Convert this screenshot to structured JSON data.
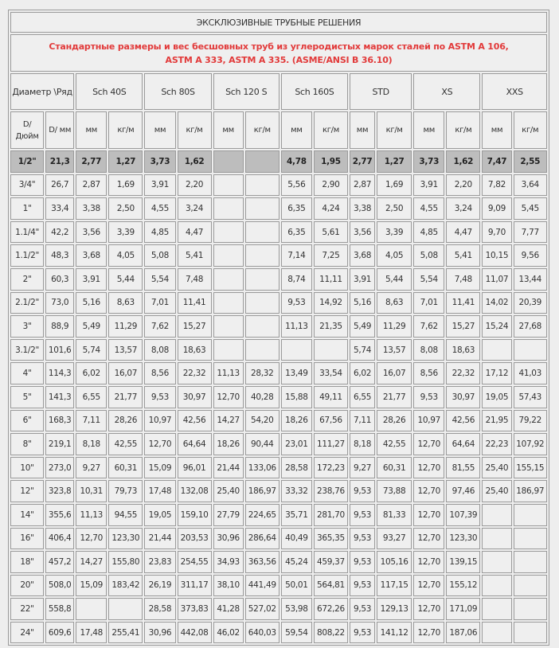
{
  "title": "ЭКСКЛЮЗИВНЫЕ ТРУБНЫЕ РЕШЕНИЯ",
  "subtitle_line1": "Стандартные размеры и вес бесшовных труб из углеродистых марок сталей по ASTM A 106,",
  "subtitle_line2": "ASTM A 333, ASTM A 335. (ASME/ANSI B 36.10)",
  "colors": {
    "subtitle": "#e23a3a",
    "highlight_row": "#bdbdbd",
    "cell": "#efefef"
  },
  "header_diameter": "Диаметр \\Ряд",
  "groups": [
    "Sch 40S",
    "Sch 80S",
    "Sch 120 S",
    "Sch 160S",
    "STD",
    "XS",
    "XXS"
  ],
  "subheaders": [
    "D/ Дюйм",
    "D/ мм",
    "мм",
    "кг/м",
    "мм",
    "кг/м",
    "мм",
    "кг/м",
    "мм",
    "кг/м",
    "мм",
    "кг/м",
    "мм",
    "кг/м",
    "мм",
    "кг/м"
  ],
  "rows": [
    [
      "1/2\"",
      "21,3",
      "2,77",
      "1,27",
      "3,73",
      "1,62",
      "",
      "",
      "4,78",
      "1,95",
      "2,77",
      "1,27",
      "3,73",
      "1,62",
      "7,47",
      "2,55"
    ],
    [
      "3/4\"",
      "26,7",
      "2,87",
      "1,69",
      "3,91",
      "2,20",
      "",
      "",
      "5,56",
      "2,90",
      "2,87",
      "1,69",
      "3,91",
      "2,20",
      "7,82",
      "3,64"
    ],
    [
      "1\"",
      "33,4",
      "3,38",
      "2,50",
      "4,55",
      "3,24",
      "",
      "",
      "6,35",
      "4,24",
      "3,38",
      "2,50",
      "4,55",
      "3,24",
      "9,09",
      "5,45"
    ],
    [
      "1.1/4\"",
      "42,2",
      "3,56",
      "3,39",
      "4,85",
      "4,47",
      "",
      "",
      "6,35",
      "5,61",
      "3,56",
      "3,39",
      "4,85",
      "4,47",
      "9,70",
      "7,77"
    ],
    [
      "1.1/2\"",
      "48,3",
      "3,68",
      "4,05",
      "5,08",
      "5,41",
      "",
      "",
      "7,14",
      "7,25",
      "3,68",
      "4,05",
      "5,08",
      "5,41",
      "10,15",
      "9,56"
    ],
    [
      "2\"",
      "60,3",
      "3,91",
      "5,44",
      "5,54",
      "7,48",
      "",
      "",
      "8,74",
      "11,11",
      "3,91",
      "5,44",
      "5,54",
      "7,48",
      "11,07",
      "13,44"
    ],
    [
      "2.1/2\"",
      "73,0",
      "5,16",
      "8,63",
      "7,01",
      "11,41",
      "",
      "",
      "9,53",
      "14,92",
      "5,16",
      "8,63",
      "7,01",
      "11,41",
      "14,02",
      "20,39"
    ],
    [
      "3\"",
      "88,9",
      "5,49",
      "11,29",
      "7,62",
      "15,27",
      "",
      "",
      "11,13",
      "21,35",
      "5,49",
      "11,29",
      "7,62",
      "15,27",
      "15,24",
      "27,68"
    ],
    [
      "3.1/2\"",
      "101,6",
      "5,74",
      "13,57",
      "8,08",
      "18,63",
      "",
      "",
      "",
      "",
      "5,74",
      "13,57",
      "8,08",
      "18,63",
      "",
      ""
    ],
    [
      "4\"",
      "114,3",
      "6,02",
      "16,07",
      "8,56",
      "22,32",
      "11,13",
      "28,32",
      "13,49",
      "33,54",
      "6,02",
      "16,07",
      "8,56",
      "22,32",
      "17,12",
      "41,03"
    ],
    [
      "5\"",
      "141,3",
      "6,55",
      "21,77",
      "9,53",
      "30,97",
      "12,70",
      "40,28",
      "15,88",
      "49,11",
      "6,55",
      "21,77",
      "9,53",
      "30,97",
      "19,05",
      "57,43"
    ],
    [
      "6\"",
      "168,3",
      "7,11",
      "28,26",
      "10,97",
      "42,56",
      "14,27",
      "54,20",
      "18,26",
      "67,56",
      "7,11",
      "28,26",
      "10,97",
      "42,56",
      "21,95",
      "79,22"
    ],
    [
      "8\"",
      "219,1",
      "8,18",
      "42,55",
      "12,70",
      "64,64",
      "18,26",
      "90,44",
      "23,01",
      "111,27",
      "8,18",
      "42,55",
      "12,70",
      "64,64",
      "22,23",
      "107,92"
    ],
    [
      "10\"",
      "273,0",
      "9,27",
      "60,31",
      "15,09",
      "96,01",
      "21,44",
      "133,06",
      "28,58",
      "172,23",
      "9,27",
      "60,31",
      "12,70",
      "81,55",
      "25,40",
      "155,15"
    ],
    [
      "12\"",
      "323,8",
      "10,31",
      "79,73",
      "17,48",
      "132,08",
      "25,40",
      "186,97",
      "33,32",
      "238,76",
      "9,53",
      "73,88",
      "12,70",
      "97,46",
      "25,40",
      "186,97"
    ],
    [
      "14\"",
      "355,6",
      "11,13",
      "94,55",
      "19,05",
      "159,10",
      "27,79",
      "224,65",
      "35,71",
      "281,70",
      "9,53",
      "81,33",
      "12,70",
      "107,39",
      "",
      ""
    ],
    [
      "16\"",
      "406,4",
      "12,70",
      "123,30",
      "21,44",
      "203,53",
      "30,96",
      "286,64",
      "40,49",
      "365,35",
      "9,53",
      "93,27",
      "12,70",
      "123,30",
      "",
      ""
    ],
    [
      "18\"",
      "457,2",
      "14,27",
      "155,80",
      "23,83",
      "254,55",
      "34,93",
      "363,56",
      "45,24",
      "459,37",
      "9,53",
      "105,16",
      "12,70",
      "139,15",
      "",
      ""
    ],
    [
      "20\"",
      "508,0",
      "15,09",
      "183,42",
      "26,19",
      "311,17",
      "38,10",
      "441,49",
      "50,01",
      "564,81",
      "9,53",
      "117,15",
      "12,70",
      "155,12",
      "",
      ""
    ],
    [
      "22\"",
      "558,8",
      "",
      "",
      "28,58",
      "373,83",
      "41,28",
      "527,02",
      "53,98",
      "672,26",
      "9,53",
      "129,13",
      "12,70",
      "171,09",
      "",
      ""
    ],
    [
      "24\"",
      "609,6",
      "17,48",
      "255,41",
      "30,96",
      "442,08",
      "46,02",
      "640,03",
      "59,54",
      "808,22",
      "9,53",
      "141,12",
      "12,70",
      "187,06",
      "",
      ""
    ]
  ]
}
